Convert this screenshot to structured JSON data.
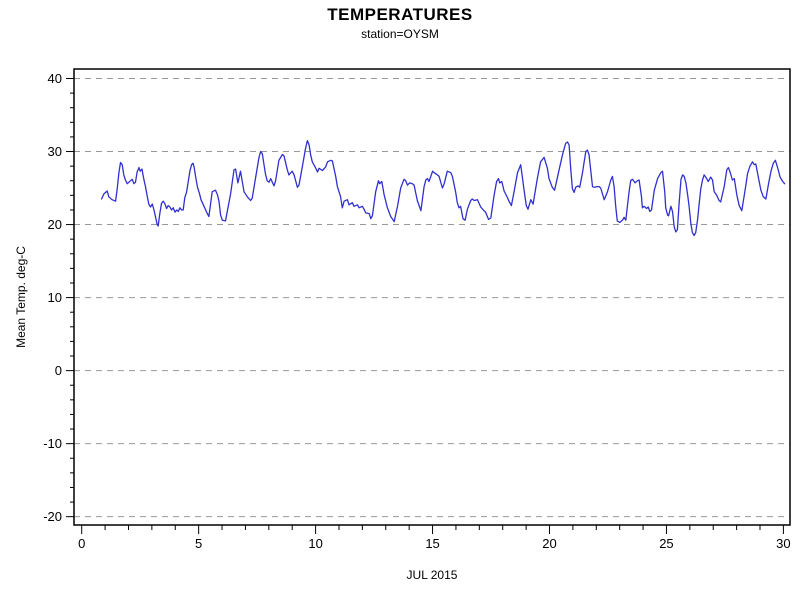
{
  "chart_data": {
    "type": "line",
    "title": "TEMPERATURES",
    "subtitle": "station=OYSM",
    "xlabel": "JUL 2015",
    "ylabel": "Mean Temp. deg-C",
    "xlim": [
      0,
      30
    ],
    "ylim": [
      -20,
      40
    ],
    "x_ticks": [
      0,
      5,
      10,
      15,
      20,
      25,
      30
    ],
    "y_ticks": [
      40,
      30,
      20,
      10,
      0,
      -10,
      -20
    ],
    "x_minor_step": 1,
    "y_minor_step": 2,
    "grid": "horizontal-dashed",
    "grid_color": "#999999",
    "axis_color": "#000000",
    "line_color": "#3030d0",
    "legend": "none",
    "series": [
      {
        "name": "Mean Temp",
        "points": [
          [
            0.85,
            23.5
          ],
          [
            0.95,
            24.2
          ],
          [
            1.09,
            24.6
          ],
          [
            1.16,
            23.8
          ],
          [
            1.23,
            23.6
          ],
          [
            1.3,
            23.4
          ],
          [
            1.45,
            23.2
          ],
          [
            1.52,
            25.0
          ],
          [
            1.59,
            27.1
          ],
          [
            1.66,
            28.5
          ],
          [
            1.73,
            28.2
          ],
          [
            1.8,
            26.8
          ],
          [
            1.87,
            26.1
          ],
          [
            1.95,
            25.6
          ],
          [
            2.02,
            25.8
          ],
          [
            2.09,
            26.0
          ],
          [
            2.16,
            26.2
          ],
          [
            2.23,
            25.6
          ],
          [
            2.3,
            25.8
          ],
          [
            2.37,
            27.2
          ],
          [
            2.45,
            27.8
          ],
          [
            2.5,
            27.3
          ],
          [
            2.58,
            27.6
          ],
          [
            2.64,
            26.5
          ],
          [
            2.73,
            25.1
          ],
          [
            2.8,
            23.9
          ],
          [
            2.87,
            22.8
          ],
          [
            2.94,
            22.4
          ],
          [
            3.02,
            22.8
          ],
          [
            3.09,
            22.0
          ],
          [
            3.16,
            21.0
          ],
          [
            3.23,
            20.0
          ],
          [
            3.27,
            19.8
          ],
          [
            3.34,
            21.5
          ],
          [
            3.41,
            22.9
          ],
          [
            3.49,
            23.2
          ],
          [
            3.56,
            22.8
          ],
          [
            3.63,
            22.2
          ],
          [
            3.7,
            22.6
          ],
          [
            3.77,
            22.4
          ],
          [
            3.84,
            22.0
          ],
          [
            3.91,
            22.3
          ],
          [
            3.99,
            21.7
          ],
          [
            4.06,
            22.0
          ],
          [
            4.13,
            21.8
          ],
          [
            4.2,
            22.3
          ],
          [
            4.27,
            22.0
          ],
          [
            4.34,
            22.0
          ],
          [
            4.41,
            23.7
          ],
          [
            4.48,
            24.4
          ],
          [
            4.56,
            26.0
          ],
          [
            4.63,
            27.4
          ],
          [
            4.7,
            28.2
          ],
          [
            4.76,
            28.4
          ],
          [
            4.81,
            27.8
          ],
          [
            4.88,
            26.4
          ],
          [
            4.95,
            25.1
          ],
          [
            5.03,
            24.3
          ],
          [
            5.1,
            23.4
          ],
          [
            5.2,
            22.7
          ],
          [
            5.3,
            22.0
          ],
          [
            5.37,
            21.5
          ],
          [
            5.44,
            21.1
          ],
          [
            5.58,
            24.5
          ],
          [
            5.72,
            24.7
          ],
          [
            5.8,
            24.1
          ],
          [
            5.87,
            23.2
          ],
          [
            5.94,
            21.3
          ],
          [
            6.01,
            20.6
          ],
          [
            6.15,
            20.5
          ],
          [
            6.37,
            24.3
          ],
          [
            6.51,
            27.5
          ],
          [
            6.58,
            27.6
          ],
          [
            6.68,
            25.7
          ],
          [
            6.79,
            27.3
          ],
          [
            6.94,
            24.5
          ],
          [
            7.08,
            23.8
          ],
          [
            7.22,
            23.3
          ],
          [
            7.29,
            23.6
          ],
          [
            7.44,
            26.5
          ],
          [
            7.58,
            29.2
          ],
          [
            7.65,
            30.0
          ],
          [
            7.72,
            29.7
          ],
          [
            7.86,
            26.9
          ],
          [
            7.93,
            26.0
          ],
          [
            8.01,
            25.8
          ],
          [
            8.08,
            26.3
          ],
          [
            8.22,
            25.3
          ],
          [
            8.29,
            26.0
          ],
          [
            8.43,
            28.8
          ],
          [
            8.58,
            29.6
          ],
          [
            8.65,
            29.4
          ],
          [
            8.79,
            27.5
          ],
          [
            8.86,
            26.8
          ],
          [
            9.0,
            27.3
          ],
          [
            9.08,
            26.8
          ],
          [
            9.22,
            25.1
          ],
          [
            9.29,
            25.4
          ],
          [
            9.43,
            27.9
          ],
          [
            9.57,
            30.4
          ],
          [
            9.65,
            31.5
          ],
          [
            9.72,
            30.9
          ],
          [
            9.79,
            29.5
          ],
          [
            9.86,
            28.6
          ],
          [
            10.01,
            27.7
          ],
          [
            10.08,
            27.2
          ],
          [
            10.15,
            27.7
          ],
          [
            10.29,
            27.4
          ],
          [
            10.43,
            27.9
          ],
          [
            10.51,
            28.6
          ],
          [
            10.65,
            28.8
          ],
          [
            10.72,
            28.7
          ],
          [
            10.86,
            26.6
          ],
          [
            10.93,
            25.2
          ],
          [
            11.0,
            24.5
          ],
          [
            11.07,
            23.8
          ],
          [
            11.14,
            22.3
          ],
          [
            11.22,
            23.2
          ],
          [
            11.36,
            23.4
          ],
          [
            11.43,
            22.7
          ],
          [
            11.57,
            23.0
          ],
          [
            11.64,
            22.5
          ],
          [
            11.79,
            22.7
          ],
          [
            11.86,
            22.3
          ],
          [
            12.0,
            22.5
          ],
          [
            12.07,
            22.1
          ],
          [
            12.14,
            21.6
          ],
          [
            12.29,
            21.5
          ],
          [
            12.36,
            20.8
          ],
          [
            12.43,
            21.2
          ],
          [
            12.57,
            24.5
          ],
          [
            12.69,
            26.0
          ],
          [
            12.74,
            25.6
          ],
          [
            12.83,
            25.9
          ],
          [
            12.93,
            24.1
          ],
          [
            13.07,
            22.3
          ],
          [
            13.21,
            21.1
          ],
          [
            13.36,
            20.4
          ],
          [
            13.5,
            22.5
          ],
          [
            13.64,
            25.0
          ],
          [
            13.78,
            26.2
          ],
          [
            13.85,
            26.0
          ],
          [
            13.93,
            25.4
          ],
          [
            14.02,
            25.7
          ],
          [
            14.14,
            25.6
          ],
          [
            14.21,
            25.4
          ],
          [
            14.35,
            23.3
          ],
          [
            14.5,
            21.9
          ],
          [
            14.64,
            25.2
          ],
          [
            14.71,
            26.1
          ],
          [
            14.78,
            26.3
          ],
          [
            14.85,
            25.9
          ],
          [
            15.0,
            27.3
          ],
          [
            15.07,
            27.1
          ],
          [
            15.21,
            26.8
          ],
          [
            15.28,
            26.6
          ],
          [
            15.42,
            25.0
          ],
          [
            15.5,
            25.6
          ],
          [
            15.63,
            27.3
          ],
          [
            15.78,
            27.1
          ],
          [
            15.85,
            26.6
          ],
          [
            15.99,
            24.4
          ],
          [
            16.06,
            23.0
          ],
          [
            16.13,
            22.3
          ],
          [
            16.2,
            22.5
          ],
          [
            16.3,
            20.8
          ],
          [
            16.39,
            20.6
          ],
          [
            16.49,
            22.1
          ],
          [
            16.63,
            23.3
          ],
          [
            16.7,
            23.5
          ],
          [
            16.78,
            23.3
          ],
          [
            16.92,
            23.4
          ],
          [
            16.99,
            22.9
          ],
          [
            17.06,
            22.4
          ],
          [
            17.2,
            21.9
          ],
          [
            17.27,
            21.7
          ],
          [
            17.39,
            20.7
          ],
          [
            17.49,
            20.9
          ],
          [
            17.63,
            24.0
          ],
          [
            17.74,
            25.9
          ],
          [
            17.82,
            26.3
          ],
          [
            17.87,
            25.7
          ],
          [
            17.96,
            25.9
          ],
          [
            18.06,
            24.6
          ],
          [
            18.2,
            23.7
          ],
          [
            18.27,
            23.2
          ],
          [
            18.37,
            22.6
          ],
          [
            18.49,
            24.6
          ],
          [
            18.63,
            27.1
          ],
          [
            18.77,
            28.2
          ],
          [
            18.91,
            24.8
          ],
          [
            19.01,
            22.6
          ],
          [
            19.08,
            22.1
          ],
          [
            19.2,
            23.4
          ],
          [
            19.3,
            22.8
          ],
          [
            19.48,
            26.3
          ],
          [
            19.62,
            28.6
          ],
          [
            19.77,
            29.2
          ],
          [
            19.91,
            27.7
          ],
          [
            19.98,
            26.3
          ],
          [
            20.12,
            25.1
          ],
          [
            20.22,
            24.7
          ],
          [
            20.41,
            27.5
          ],
          [
            20.55,
            29.5
          ],
          [
            20.69,
            31.1
          ],
          [
            20.77,
            31.3
          ],
          [
            20.84,
            30.9
          ],
          [
            20.91,
            27.5
          ],
          [
            20.98,
            24.9
          ],
          [
            21.05,
            24.4
          ],
          [
            21.12,
            25.1
          ],
          [
            21.22,
            25.3
          ],
          [
            21.29,
            25.1
          ],
          [
            21.41,
            27.1
          ],
          [
            21.55,
            30.0
          ],
          [
            21.62,
            30.2
          ],
          [
            21.69,
            29.6
          ],
          [
            21.84,
            25.2
          ],
          [
            21.91,
            25.1
          ],
          [
            22.05,
            25.2
          ],
          [
            22.12,
            25.2
          ],
          [
            22.19,
            25.0
          ],
          [
            22.34,
            23.4
          ],
          [
            22.48,
            24.5
          ],
          [
            22.62,
            26.1
          ],
          [
            22.69,
            26.6
          ],
          [
            22.76,
            25.2
          ],
          [
            22.83,
            22.5
          ],
          [
            22.9,
            20.5
          ],
          [
            23.0,
            20.3
          ],
          [
            23.12,
            20.6
          ],
          [
            23.19,
            21.0
          ],
          [
            23.26,
            20.6
          ],
          [
            23.4,
            24.4
          ],
          [
            23.47,
            26.0
          ],
          [
            23.55,
            26.2
          ],
          [
            23.66,
            25.7
          ],
          [
            23.76,
            26.0
          ],
          [
            23.83,
            26.1
          ],
          [
            23.93,
            23.9
          ],
          [
            23.97,
            22.3
          ],
          [
            24.05,
            22.5
          ],
          [
            24.15,
            22.2
          ],
          [
            24.22,
            22.4
          ],
          [
            24.29,
            21.8
          ],
          [
            24.36,
            22.0
          ],
          [
            24.48,
            24.7
          ],
          [
            24.62,
            26.3
          ],
          [
            24.76,
            27.1
          ],
          [
            24.83,
            27.3
          ],
          [
            24.93,
            24.4
          ],
          [
            24.97,
            22.3
          ],
          [
            25.05,
            21.3
          ],
          [
            25.09,
            21.2
          ],
          [
            25.19,
            22.5
          ],
          [
            25.26,
            21.8
          ],
          [
            25.33,
            19.7
          ],
          [
            25.4,
            19.0
          ],
          [
            25.47,
            19.3
          ],
          [
            25.54,
            22.9
          ],
          [
            25.62,
            26.2
          ],
          [
            25.69,
            26.8
          ],
          [
            25.76,
            26.6
          ],
          [
            25.83,
            25.7
          ],
          [
            25.9,
            24.2
          ],
          [
            25.97,
            22.5
          ],
          [
            26.04,
            20.2
          ],
          [
            26.11,
            18.9
          ],
          [
            26.18,
            18.5
          ],
          [
            26.25,
            18.9
          ],
          [
            26.33,
            20.7
          ],
          [
            26.4,
            22.9
          ],
          [
            26.47,
            24.9
          ],
          [
            26.54,
            26.1
          ],
          [
            26.61,
            26.8
          ],
          [
            26.68,
            26.5
          ],
          [
            26.79,
            25.9
          ],
          [
            26.89,
            26.5
          ],
          [
            26.97,
            26.1
          ],
          [
            27.04,
            24.5
          ],
          [
            27.15,
            24.0
          ],
          [
            27.25,
            23.3
          ],
          [
            27.32,
            23.1
          ],
          [
            27.47,
            25.2
          ],
          [
            27.58,
            27.5
          ],
          [
            27.65,
            27.8
          ],
          [
            27.72,
            27.2
          ],
          [
            27.82,
            26.1
          ],
          [
            27.9,
            26.3
          ],
          [
            28.01,
            24.0
          ],
          [
            28.11,
            22.6
          ],
          [
            28.22,
            21.9
          ],
          [
            28.37,
            24.9
          ],
          [
            28.47,
            27.0
          ],
          [
            28.57,
            28.0
          ],
          [
            28.68,
            28.6
          ],
          [
            28.75,
            28.2
          ],
          [
            28.82,
            28.3
          ],
          [
            28.94,
            26.3
          ],
          [
            29.04,
            24.7
          ],
          [
            29.14,
            23.8
          ],
          [
            29.25,
            23.5
          ],
          [
            29.37,
            25.7
          ],
          [
            29.47,
            27.3
          ],
          [
            29.57,
            28.4
          ],
          [
            29.66,
            28.8
          ],
          [
            29.76,
            27.7
          ],
          [
            29.86,
            26.5
          ],
          [
            29.97,
            25.9
          ],
          [
            30.05,
            25.6
          ]
        ]
      }
    ]
  }
}
